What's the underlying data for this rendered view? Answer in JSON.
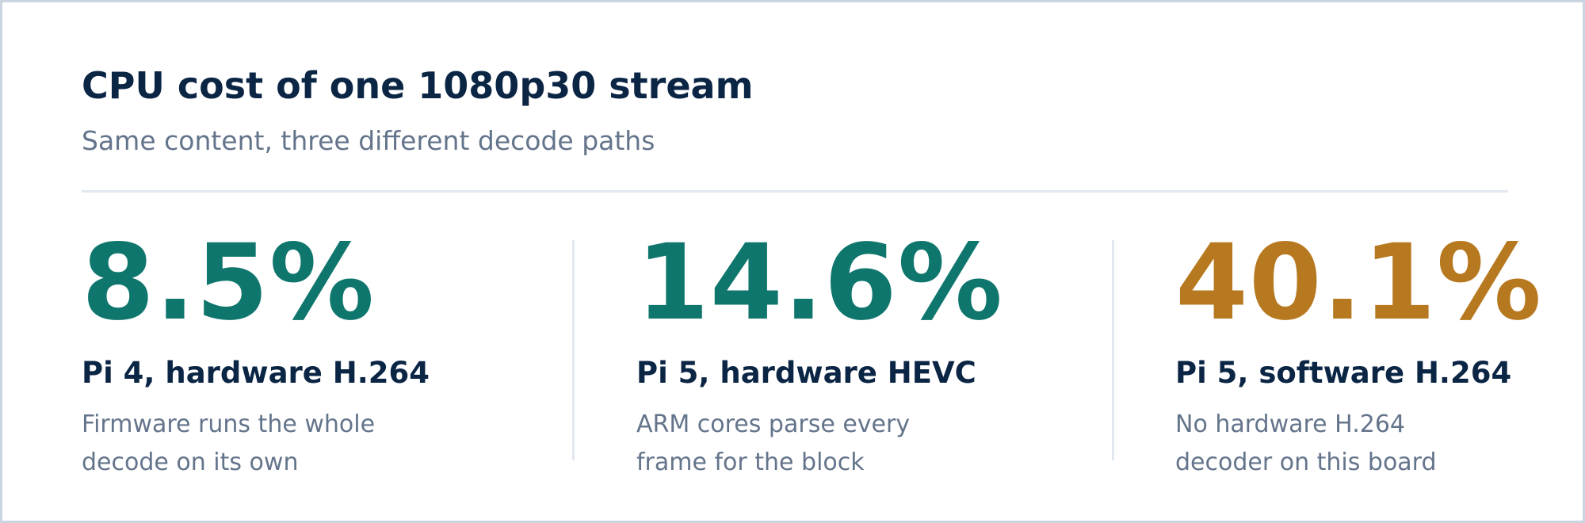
{
  "header": {
    "title": "CPU cost of one 1080p30 stream",
    "subtitle": "Same content, three different decode paths"
  },
  "stats": [
    {
      "value": "8.5%",
      "label": "Pi 4, hardware H.264",
      "description": "Firmware runs the whole decode on its own",
      "color": "#0f766e"
    },
    {
      "value": "14.6%",
      "label": "Pi 5, hardware HEVC",
      "description": "ARM cores parse every frame for the block",
      "color": "#0f766e"
    },
    {
      "value": "40.1%",
      "label": "Pi 5, software H.264",
      "description": "No hardware H.264 decoder on this board",
      "color": "#b7791f"
    }
  ]
}
